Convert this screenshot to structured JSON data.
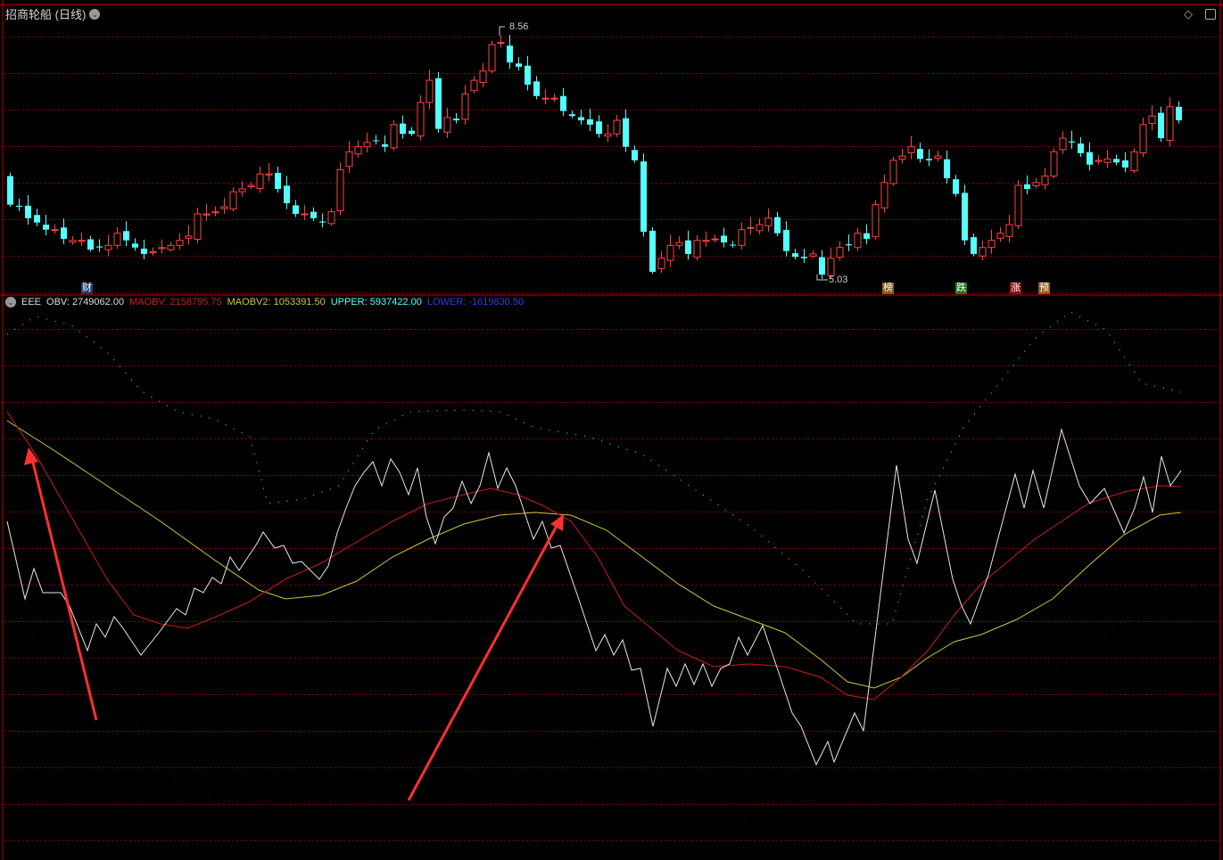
{
  "header": {
    "title": "招商轮船 (日线)"
  },
  "indicator": {
    "name": "EEE",
    "obv": "OBV: 2749062.00",
    "maobv": "MAOBV: 2158795.75",
    "maobv2": "MAOBV2: 1053391.50",
    "upper": "UPPER: 5937422.00",
    "lower": "LOWER: -1619830.50"
  },
  "markers": {
    "high": "8.56",
    "low": "5.03"
  },
  "tags": [
    {
      "text": "财",
      "color": "#1e3a6e"
    },
    {
      "text": "榜",
      "color": "#8a5a1a"
    },
    {
      "text": "跌",
      "color": "#1f7a1f"
    },
    {
      "text": "涨",
      "color": "#8a1010"
    },
    {
      "text": "预",
      "color": "#9a5a1a"
    }
  ],
  "colors": {
    "up": "#ff4444",
    "down": "#54ffff",
    "obv": "#e8e8e8",
    "maobv": "#c81e1e",
    "maobv2": "#c8c83c",
    "upper": "#54ffff",
    "lower": "#2030c0",
    "grid": "#8b0000",
    "arrow": "#ff3030"
  },
  "icons": {
    "collapse": "chevron-down-icon",
    "diamond": "diamond-icon",
    "panel": "panel-toggle-icon"
  },
  "chart_data": {
    "type": "candlestick",
    "ylim": [
      5.03,
      8.56
    ],
    "closes": [
      6.07,
      6.04,
      5.88,
      5.82,
      5.72,
      5.72,
      5.59,
      5.57,
      5.57,
      5.44,
      5.47,
      5.5,
      5.67,
      5.57,
      5.47,
      5.38,
      5.41,
      5.47,
      5.5,
      5.57,
      5.63,
      5.94,
      5.94,
      5.97,
      6.04,
      6.25,
      6.29,
      6.34,
      6.5,
      6.5,
      6.29,
      6.09,
      5.94,
      5.94,
      5.88,
      5.82,
      5.97,
      6.56,
      6.81,
      6.88,
      6.94,
      6.96,
      6.88,
      7.19,
      7.06,
      7.06,
      7.5,
      7.81,
      7.13,
      7.29,
      7.25,
      7.62,
      7.81,
      7.94,
      8.31,
      8.34,
      8.06,
      8.0,
      7.75,
      7.59,
      7.56,
      7.56,
      7.38,
      7.31,
      7.25,
      7.19,
      7.06,
      7.06,
      7.25,
      6.88,
      6.69,
      5.69,
      5.13,
      5.32,
      5.5,
      5.54,
      5.38,
      5.57,
      5.57,
      5.59,
      5.54,
      5.5,
      5.72,
      5.75,
      5.79,
      5.88,
      5.67,
      5.42,
      5.34,
      5.32,
      5.38,
      5.09,
      5.32,
      5.47,
      5.5,
      5.67,
      5.59,
      6.07,
      6.38,
      6.69,
      6.75,
      6.88,
      6.71,
      6.69,
      6.75,
      6.44,
      6.22,
      5.57,
      5.38,
      5.47,
      5.57,
      5.67,
      5.79,
      6.34,
      6.29,
      6.38,
      6.47,
      6.81,
      7.0,
      6.94,
      6.79,
      6.63,
      6.69,
      6.71,
      6.66,
      6.59,
      6.81,
      7.19,
      7.31,
      7.0,
      7.44,
      7.25
    ],
    "high_label": 8.56,
    "low_label": 5.03
  }
}
